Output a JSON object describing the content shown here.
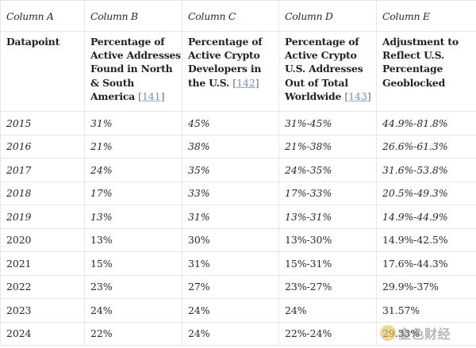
{
  "columns": [
    "Column A",
    "Column B",
    "Column C",
    "Column D",
    "Column E"
  ],
  "headers": {
    "a": {
      "text": "Datapoint"
    },
    "b": {
      "text": "Percentage of Active Addresses Found in North & South America",
      "ref": "141"
    },
    "c": {
      "text": "Percentage of Active Crypto Developers in the U.S.",
      "ref": "142"
    },
    "d": {
      "text": "Percentage of Active Crypto U.S. Addresses Out of Total Worldwide",
      "ref": "143"
    },
    "e": {
      "text": "Adjustment to Reflect U.S. Percentage Geoblocked"
    }
  },
  "rows": [
    [
      "2015",
      "31%",
      "45%",
      "31%-45%",
      "44.9%-81.8%"
    ],
    [
      "2016",
      "21%",
      "38%",
      "21%-38%",
      "26.6%-61.3%"
    ],
    [
      "2017",
      "24%",
      "35%",
      "24%-35%",
      "31.6%-53.8%"
    ],
    [
      "2018",
      "17%",
      "33%",
      "17%-33%",
      "20.5%-49.3%"
    ],
    [
      "2019",
      "13%",
      "31%",
      "13%-31%",
      "14.9%-44.9%"
    ],
    [
      "2020",
      "13%",
      "30%",
      "13%-30%",
      "14.9%-42.5%"
    ],
    [
      "2021",
      "15%",
      "31%",
      "15%-31%",
      "17.6%-44.3%"
    ],
    [
      "2022",
      "23%",
      "27%",
      "23%-27%",
      "29.9%-37%"
    ],
    [
      "2023",
      "24%",
      "24%",
      "24%",
      "31.57%"
    ],
    [
      "2024",
      "22%",
      "24%",
      "22%-24%",
      "29.33%"
    ]
  ],
  "watermark": {
    "text": "金色财经",
    "icon": "coin-logo-icon"
  }
}
